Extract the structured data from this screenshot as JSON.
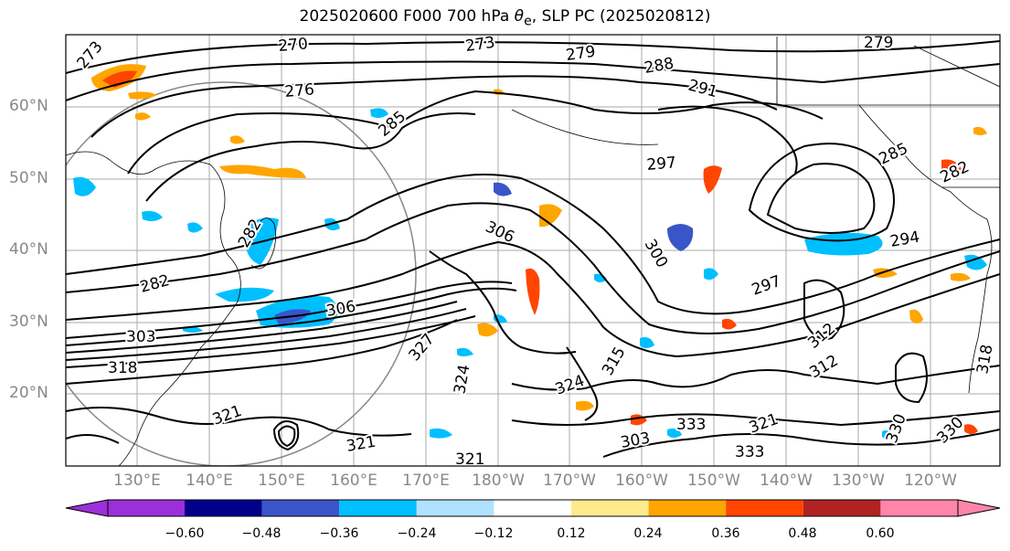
{
  "title": "2025020600 F000 700 hPa θe, SLP PC (2025020812)",
  "title_parts": {
    "prefix": "2025020600 F000 700 hPa ",
    "theta": "θ",
    "sub": "e",
    "suffix": ", SLP PC (2025020812)"
  },
  "lat_labels": [
    "60°N",
    "50°N",
    "40°N",
    "30°N",
    "20°N"
  ],
  "lon_labels": [
    "130°E",
    "140°E",
    "150°E",
    "160°E",
    "170°E",
    "180°W",
    "170°W",
    "160°W",
    "150°W",
    "140°W",
    "130°W",
    "120°W"
  ],
  "contour_labels": [
    "270",
    "273",
    "273",
    "276",
    "279",
    "279",
    "288",
    "291",
    "285",
    "285",
    "297",
    "282",
    "282",
    "306",
    "300",
    "306",
    "294",
    "297",
    "282",
    "303",
    "318",
    "327",
    "324",
    "324",
    "315",
    "321",
    "333",
    "321",
    "321",
    "303",
    "312",
    "312",
    "321",
    "333",
    "330",
    "330",
    "318"
  ],
  "colorbar": {
    "ticks": [
      "−0.60",
      "−0.48",
      "−0.36",
      "−0.24",
      "−0.12",
      "0.12",
      "0.24",
      "0.36",
      "0.48",
      "0.60"
    ],
    "colors": [
      "#9b30d9",
      "#00008b",
      "#3a55c9",
      "#00bfff",
      "#b0e2ff",
      "#ffffff",
      "#ffeb8c",
      "#ffa500",
      "#ff4500",
      "#b22222",
      "#ff85aa",
      "#ff85aa"
    ]
  }
}
